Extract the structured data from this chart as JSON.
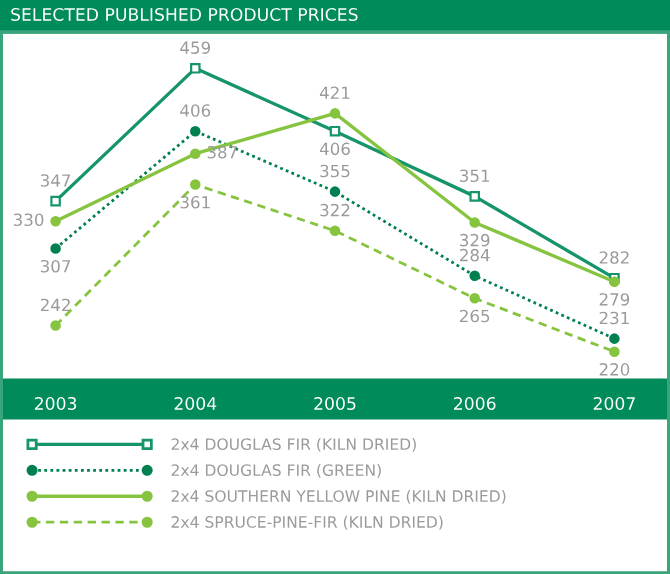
{
  "chart_data": {
    "type": "line",
    "title": "SELECTED PUBLISHED PRODUCT PRICES",
    "categories": [
      "2003",
      "2004",
      "2005",
      "2006",
      "2007"
    ],
    "series": [
      {
        "name": "2x4 DOUGLAS FIR (KILN DRIED)",
        "color": "#16946a",
        "values": [
          347,
          459,
          406,
          351,
          282
        ],
        "line_style": "solid",
        "marker": "square"
      },
      {
        "name": "2x4 DOUGLAS FIR (GREEN)",
        "color": "#00804f",
        "values": [
          307,
          406,
          355,
          284,
          231
        ],
        "line_style": "dotted",
        "marker": "circle"
      },
      {
        "name": "2x4 SOUTHERN YELLOW PINE (KILN DRIED)",
        "color": "#86c440",
        "values": [
          330,
          387,
          421,
          329,
          279
        ],
        "line_style": "solid",
        "marker": "circle"
      },
      {
        "name": "2x4 SPRUCE-PINE-FIR (KILN DRIED)",
        "color": "#86c440",
        "values": [
          242,
          361,
          322,
          265,
          220
        ],
        "line_style": "dashed",
        "marker": "circle"
      }
    ],
    "data_labels": true,
    "grid": false,
    "legend": "bottom"
  }
}
